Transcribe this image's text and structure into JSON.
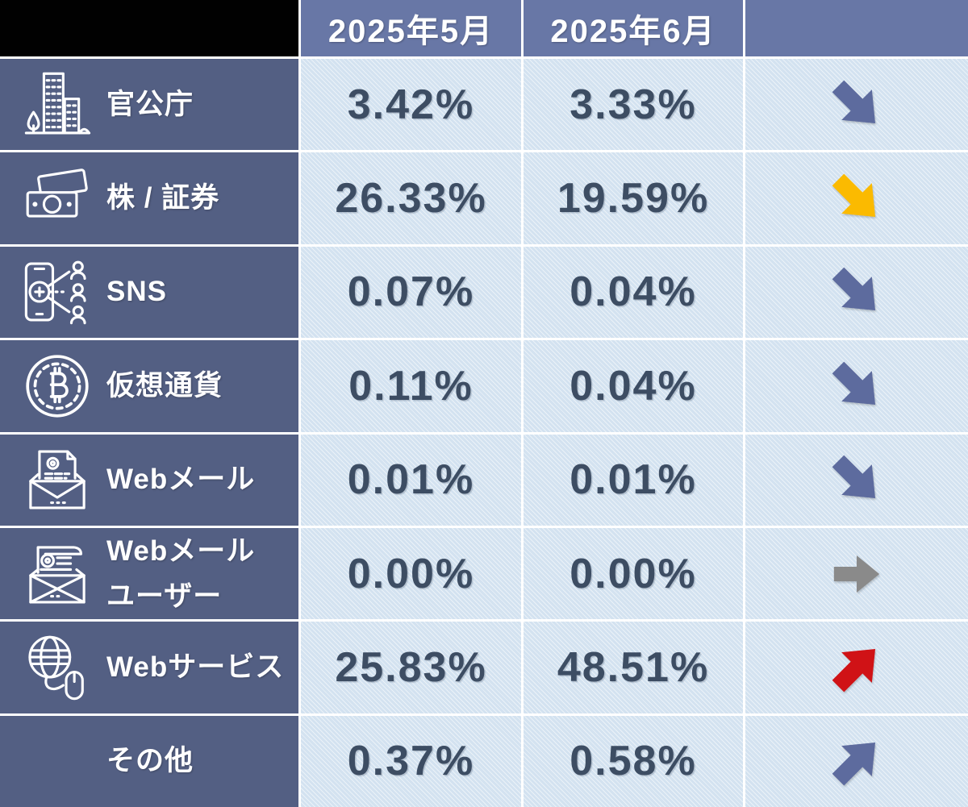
{
  "header": {
    "corner": "",
    "months": [
      "2025年5月",
      "2025年6月"
    ],
    "trend_column": ""
  },
  "rows": [
    {
      "label": "官公庁",
      "icon": "government-building-icon",
      "values": [
        "3.42%",
        "3.33%"
      ],
      "trend": "down",
      "arrow_color": "#5d6b9e"
    },
    {
      "label": "株 / 証券",
      "icon": "banknote-icon",
      "values": [
        "26.33%",
        "19.59%"
      ],
      "trend": "down",
      "arrow_color": "#fbba00"
    },
    {
      "label": "SNS",
      "icon": "sns-share-icon",
      "values": [
        "0.07%",
        "0.04%"
      ],
      "trend": "down",
      "arrow_color": "#5d6b9e"
    },
    {
      "label": "仮想通貨",
      "icon": "bitcoin-icon",
      "values": [
        "0.11%",
        "0.04%"
      ],
      "trend": "down",
      "arrow_color": "#5d6b9e"
    },
    {
      "label": "Webメール",
      "icon": "webmail-icon",
      "values": [
        "0.01%",
        "0.01%"
      ],
      "trend": "down",
      "arrow_color": "#5d6b9e"
    },
    {
      "label": "Webメール",
      "label_line2": "ユーザー",
      "icon": "webmail-user-icon",
      "values": [
        "0.00%",
        "0.00%"
      ],
      "trend": "right",
      "arrow_color": "#8a8a8a"
    },
    {
      "label": "Webサービス",
      "icon": "web-service-icon",
      "values": [
        "25.83%",
        "48.51%"
      ],
      "trend": "up",
      "arrow_color": "#d01216"
    },
    {
      "label": "その他",
      "icon": null,
      "values": [
        "0.37%",
        "0.58%"
      ],
      "trend": "up",
      "arrow_color": "#5d6b9e"
    }
  ],
  "colors": {
    "header_bg": "#6877a6",
    "label_bg": "#535f83",
    "cell_bg": "#d3e2f0",
    "value_color": "#3d4d63",
    "slate_arrow": "#5d6b9e",
    "yellow_arrow": "#fbba00",
    "gray_arrow": "#8a8a8a",
    "red_arrow": "#d01216"
  }
}
